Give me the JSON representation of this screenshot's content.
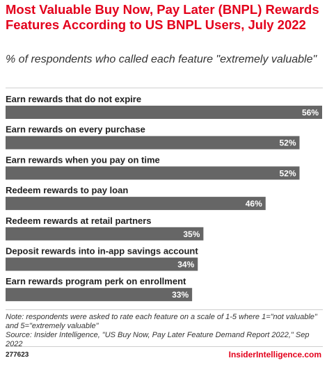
{
  "header": {
    "title": "Most Valuable Buy Now, Pay Later (BNPL) Rewards Features According to US BNPL Users, July 2022",
    "subtitle": "% of respondents who called each feature \"extremely valuable\""
  },
  "chart_data": {
    "type": "bar",
    "orientation": "horizontal",
    "categories": [
      "Earn rewards that do not expire",
      "Earn rewards on every purchase",
      "Earn rewards when you pay on time",
      "Redeem rewards to pay loan",
      "Redeem rewards at retail partners",
      "Deposit rewards into in-app savings account",
      "Earn rewards program perk on enrollment"
    ],
    "values": [
      56,
      52,
      52,
      46,
      35,
      34,
      33
    ],
    "value_labels": [
      "56%",
      "52%",
      "52%",
      "46%",
      "35%",
      "34%",
      "33%"
    ],
    "xlim": [
      0,
      56
    ],
    "bar_color": "#666666",
    "grid": false
  },
  "footer": {
    "note": "Note: respondents were asked to rate each feature on a scale of 1-5 where 1=\"not valuable\" and 5=\"extremely valuable\"",
    "source": "Source: Insider Intelligence, \"US Buy Now, Pay Later Feature Demand Report 2022,\" Sep 2022",
    "chart_id": "277623",
    "brand": "InsiderIntelligence.com"
  }
}
